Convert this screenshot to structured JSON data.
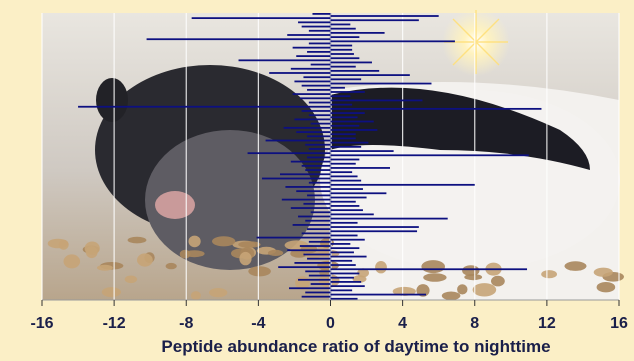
{
  "chart_data": {
    "type": "bar",
    "orientation": "horizontal",
    "xlabel": "Peptide abundance ratio of daytime to nighttime",
    "xlim": [
      -16,
      16
    ],
    "xticks": [
      -16,
      -12,
      -8,
      -4,
      0,
      4,
      8,
      12,
      16
    ],
    "grid": true,
    "bar_color": "#0d1080",
    "values": [
      -1.0,
      6.0,
      -7.7,
      4.9,
      -1.8,
      1.1,
      -1.6,
      1.4,
      -1.2,
      3.0,
      -2.4,
      1.6,
      -10.2,
      6.9,
      -1.2,
      1.2,
      -2.1,
      1.2,
      -1.3,
      1.3,
      -1.9,
      1.6,
      -5.1,
      2.3,
      -1.1,
      1.4,
      -2.2,
      2.7,
      -3.4,
      4.4,
      -1.5,
      1.7,
      -2.0,
      5.6,
      -1.6,
      0.8,
      -1.3,
      1.9,
      -2.1,
      1.1,
      -1.7,
      5.1,
      -1.2,
      1.2,
      -14.0,
      11.7,
      -1.6,
      1.9,
      -1.2,
      1.5,
      -2.0,
      2.4,
      -1.1,
      1.6,
      -2.6,
      2.6,
      -1.9,
      1.4,
      -1.3,
      1.4,
      -3.6,
      2.1,
      -1.4,
      1.7,
      -1.2,
      3.5,
      -4.6,
      11.0,
      -1.3,
      1.6,
      -2.2,
      1.4,
      -1.6,
      3.3,
      -1.4,
      1.2,
      -2.8,
      1.5,
      -3.8,
      1.7,
      -1.2,
      8.0,
      -2.5,
      1.8,
      -1.9,
      3.1,
      -1.3,
      2.0,
      -2.7,
      1.4,
      -1.5,
      1.6,
      -2.2,
      1.8,
      -1.1,
      2.4,
      -1.8,
      6.5,
      -1.4,
      1.5,
      -2.1,
      4.9,
      -1.3,
      4.8,
      -1.6,
      1.5,
      -4.1,
      1.9,
      -1.2,
      1.1,
      -1.7,
      1.6,
      -2.4,
      1.3,
      -1.5,
      2.0,
      -1.3,
      1.2,
      -2.0,
      1.4,
      -2.9,
      10.9,
      -1.4,
      1.6,
      -1.2,
      1.3,
      -1.8,
      1.7,
      -1.1,
      1.9,
      -2.3,
      1.2,
      -1.4,
      5.3,
      -1.6,
      1.5
    ]
  }
}
